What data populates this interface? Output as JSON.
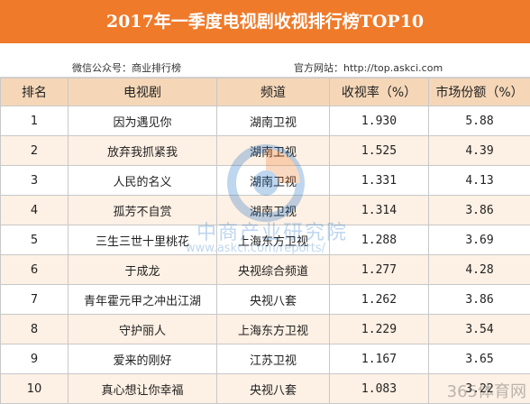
{
  "header": {
    "title": "2017年一季度电视剧收视排行榜TOP10",
    "wechat": "微信公众号：商业排行榜",
    "website": "官方网站：http://top.askci.com"
  },
  "columns": [
    "排名",
    "电视剧",
    "频道",
    "收视率（%）",
    "市场份额（%）"
  ],
  "rows": [
    {
      "rank": "1",
      "title": "因为遇见你",
      "channel": "湖南卫视",
      "rating": "1.930",
      "share": "5.88"
    },
    {
      "rank": "2",
      "title": "放弃我抓紧我",
      "channel": "湖南卫视",
      "rating": "1.525",
      "share": "4.39"
    },
    {
      "rank": "3",
      "title": "人民的名义",
      "channel": "湖南卫视",
      "rating": "1.331",
      "share": "4.13"
    },
    {
      "rank": "4",
      "title": "孤芳不自赏",
      "channel": "湖南卫视",
      "rating": "1.314",
      "share": "3.86"
    },
    {
      "rank": "5",
      "title": "三生三世十里桃花",
      "channel": "上海东方卫视",
      "rating": "1.288",
      "share": "3.69"
    },
    {
      "rank": "6",
      "title": "于成龙",
      "channel": "央视综合频道",
      "rating": "1.277",
      "share": "4.28"
    },
    {
      "rank": "7",
      "title": "青年霍元甲之冲出江湖",
      "channel": "央视八套",
      "rating": "1.262",
      "share": "3.86"
    },
    {
      "rank": "8",
      "title": "守护丽人",
      "channel": "上海东方卫视",
      "rating": "1.229",
      "share": "3.54"
    },
    {
      "rank": "9",
      "title": "爱来的刚好",
      "channel": "江苏卫视",
      "rating": "1.167",
      "share": "3.65"
    },
    {
      "rank": "10",
      "title": "真心想让你幸福",
      "channel": "央视八套",
      "rating": "1.083",
      "share": "3.22"
    }
  ],
  "watermark": {
    "cn": "中商产业研究院",
    "url": "www.askci.com/reports/",
    "corner": "365体育网"
  },
  "chart_data": {
    "type": "table",
    "title": "2017年一季度电视剧收视排行榜TOP10",
    "columns": [
      "排名",
      "电视剧",
      "频道",
      "收视率（%）",
      "市场份额（%）"
    ],
    "rows": [
      [
        "1",
        "因为遇见你",
        "湖南卫视",
        1.93,
        5.88
      ],
      [
        "2",
        "放弃我抓紧我",
        "湖南卫视",
        1.525,
        4.39
      ],
      [
        "3",
        "人民的名义",
        "湖南卫视",
        1.331,
        4.13
      ],
      [
        "4",
        "孤芳不自赏",
        "湖南卫视",
        1.314,
        3.86
      ],
      [
        "5",
        "三生三世十里桃花",
        "上海东方卫视",
        1.288,
        3.69
      ],
      [
        "6",
        "于成龙",
        "央视综合频道",
        1.277,
        4.28
      ],
      [
        "7",
        "青年霍元甲之冲出江湖",
        "央视八套",
        1.262,
        3.86
      ],
      [
        "8",
        "守护丽人",
        "上海东方卫视",
        1.229,
        3.54
      ],
      [
        "9",
        "爱来的刚好",
        "江苏卫视",
        1.167,
        3.65
      ],
      [
        "10",
        "真心想让你幸福",
        "央视八套",
        1.083,
        3.22
      ]
    ]
  },
  "colors": {
    "title_bg": "#ef7a2a",
    "header_bg": "#f5d7b8",
    "alt_row_bg": "#fdf0e4",
    "watermark": "#1a6fc4"
  }
}
